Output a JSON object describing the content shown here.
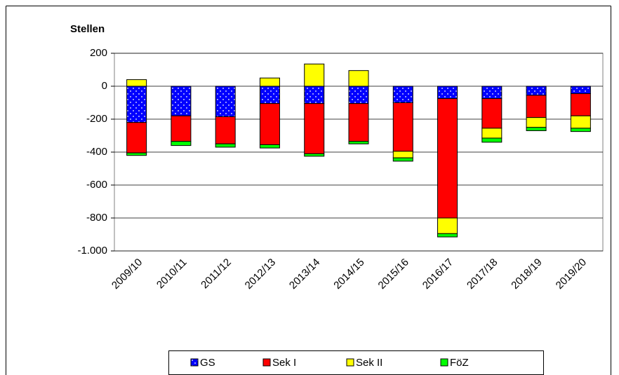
{
  "chart_data": {
    "type": "stacked-bar",
    "y_label": "Stellen",
    "categories": [
      "2009/10",
      "2010/11",
      "2011/12",
      "2012/13",
      "2013/14",
      "2014/15",
      "2015/16",
      "2016/17",
      "2017/18",
      "2018/19",
      "2019/20"
    ],
    "series": [
      {
        "name": "GS",
        "color": "#0000ff",
        "values": [
          -220,
          -180,
          -185,
          -105,
          -105,
          -105,
          -100,
          -75,
          -75,
          -55,
          -45
        ]
      },
      {
        "name": "Sek I",
        "color": "#ff0000",
        "values": [
          -185,
          -155,
          -165,
          -250,
          -305,
          -230,
          -295,
          -725,
          -180,
          -135,
          -135
        ]
      },
      {
        "name": "Sek II",
        "color": "#ffff00",
        "values": [
          40,
          0,
          0,
          50,
          135,
          95,
          -40,
          -95,
          -60,
          -60,
          -75
        ]
      },
      {
        "name": "FöZ",
        "color": "#00ff00",
        "values": [
          -15,
          -25,
          -20,
          -20,
          -15,
          -15,
          -20,
          -20,
          -25,
          -20,
          -20
        ]
      }
    ],
    "ylim": [
      -1000,
      200
    ],
    "yticks": [
      200,
      0,
      -200,
      -400,
      -600,
      -800,
      {
        "value": -1000,
        "label": "-1.000"
      }
    ],
    "grid": true,
    "legend": "bottom"
  }
}
